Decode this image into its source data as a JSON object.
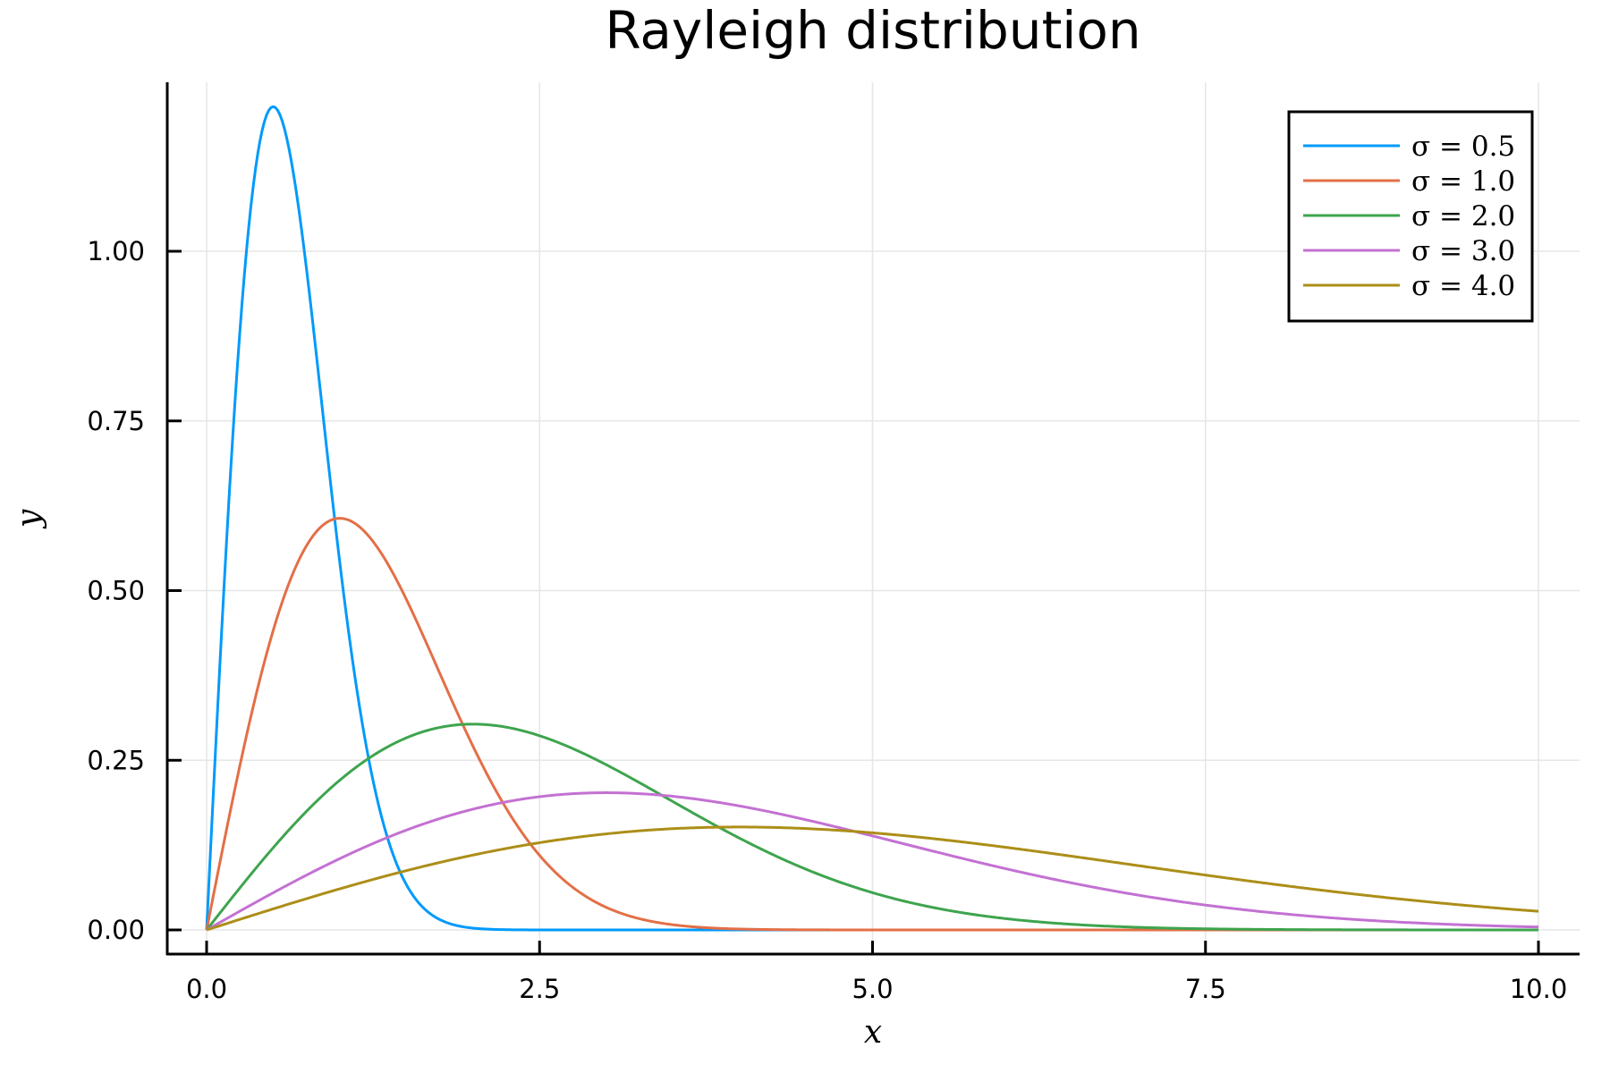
{
  "chart_data": {
    "type": "line",
    "title": "Rayleigh distribution",
    "xlabel": "x",
    "ylabel": "y",
    "xlim": [
      -0.3,
      10.3
    ],
    "ylim": [
      -0.04,
      1.25
    ],
    "xticks": [
      0.0,
      2.5,
      5.0,
      7.5,
      10.0
    ],
    "xtick_labels": [
      "0.0",
      "2.5",
      "5.0",
      "7.5",
      "10.0"
    ],
    "yticks": [
      0.0,
      0.25,
      0.5,
      0.75,
      1.0
    ],
    "ytick_labels": [
      "0.00",
      "0.25",
      "0.50",
      "0.75",
      "1.00"
    ],
    "grid": true,
    "legend_position": "top-right",
    "function": "pdf(x) = (x / sigma^2) * exp(-x^2 / (2 sigma^2))",
    "x_range": [
      0,
      10
    ],
    "series": [
      {
        "name": "σ = 0.5",
        "sigma": 0.5,
        "color": "#009AFA",
        "peak": {
          "x": 0.5,
          "y": 1.213
        }
      },
      {
        "name": "σ = 1.0",
        "sigma": 1.0,
        "color": "#E36F47",
        "peak": {
          "x": 1.0,
          "y": 0.607
        }
      },
      {
        "name": "σ = 2.0",
        "sigma": 2.0,
        "color": "#3EA44E",
        "peak": {
          "x": 2.0,
          "y": 0.303
        }
      },
      {
        "name": "σ = 3.0",
        "sigma": 3.0,
        "color": "#C371D2",
        "peak": {
          "x": 3.0,
          "y": 0.202
        }
      },
      {
        "name": "σ = 4.0",
        "sigma": 4.0,
        "color": "#AC8E18",
        "peak": {
          "x": 4.0,
          "y": 0.152
        }
      }
    ]
  },
  "legend": {
    "items": [
      {
        "label": "σ = 0.5"
      },
      {
        "label": "σ = 1.0"
      },
      {
        "label": "σ = 2.0"
      },
      {
        "label": "σ = 3.0"
      },
      {
        "label": "σ = 4.0"
      }
    ]
  }
}
